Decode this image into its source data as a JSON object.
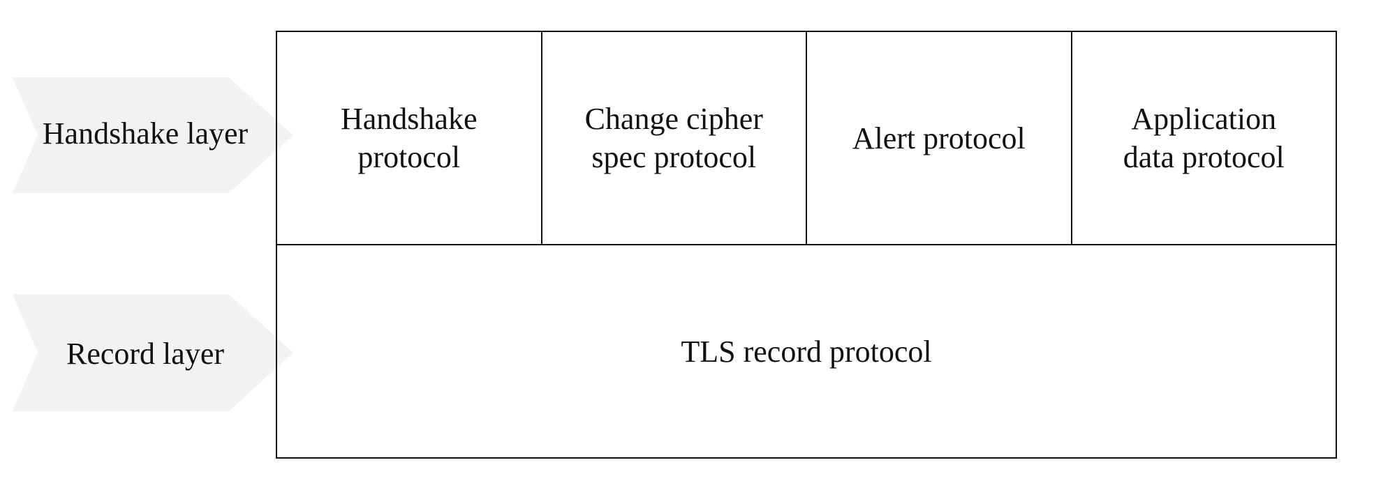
{
  "layers": {
    "handshake": "Handshake layer",
    "record": "Record layer"
  },
  "handshake_protocols": [
    {
      "line1": "Handshake",
      "line2": "protocol"
    },
    {
      "line1": "Change cipher",
      "line2": "spec protocol"
    },
    {
      "line1": "Alert protocol",
      "line2": ""
    },
    {
      "line1": "Application",
      "line2": "data protocol"
    }
  ],
  "record_protocol": "TLS record protocol",
  "colors": {
    "chevron_fill": "#f2f2f2",
    "border": "#111111",
    "text": "#111111",
    "background": "#ffffff"
  }
}
